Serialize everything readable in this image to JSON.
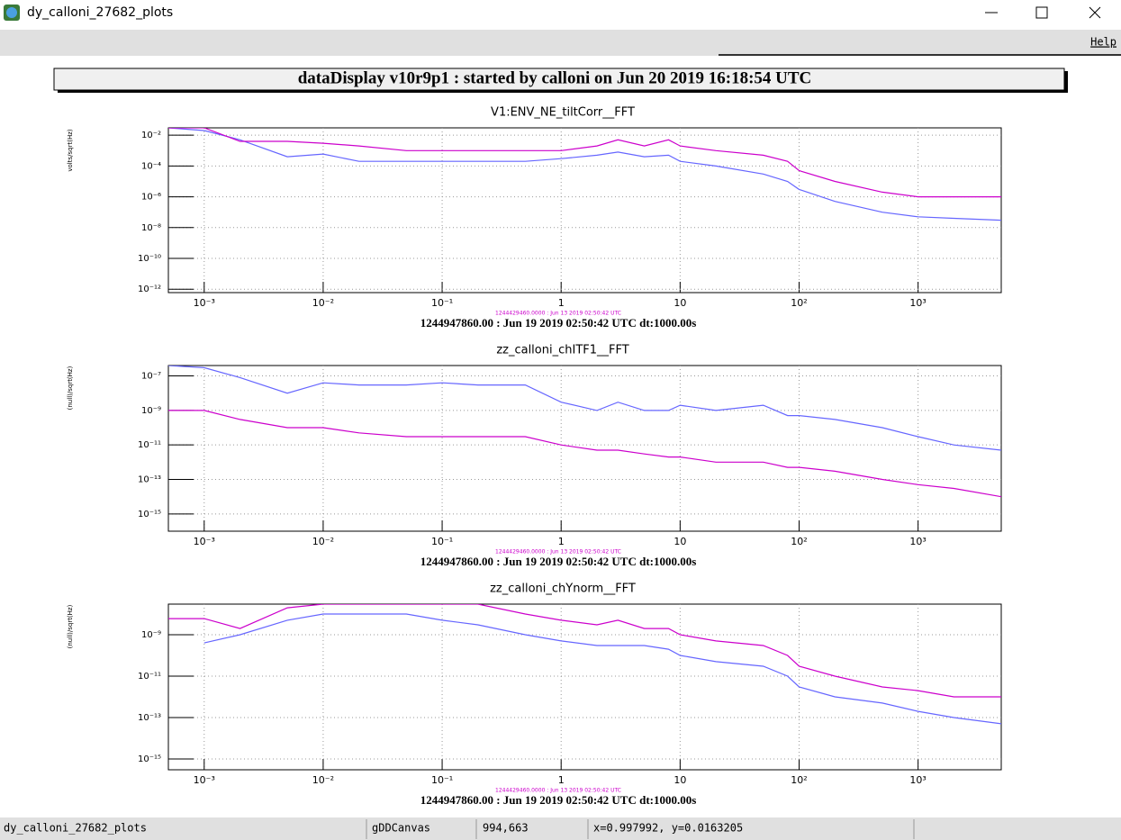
{
  "window": {
    "title": "dy_calloni_27682_plots"
  },
  "menu": {
    "help": "Help"
  },
  "canvas_title": "dataDisplay v10r9p1 : started by calloni on Jun 20 2019 16:18:54 UTC",
  "chart_data": [
    {
      "type": "line",
      "title": "V1:ENV_NE_tiltCorr__FFT",
      "y_label": "volts/sqrt(Hz)",
      "x_label": "1244947860.00 : Jun 19 2019 02:50:42 UTC dt:1000.00s",
      "ref_label": "1244429460.0000 : Jun 13 2019 02:50:42 UTC",
      "log_x": true,
      "log_y": true,
      "grid": true,
      "xlim": [
        0.0005,
        5000
      ],
      "xticks": [
        {
          "value": 0.001,
          "label": "10⁻³"
        },
        {
          "value": 0.01,
          "label": "10⁻²"
        },
        {
          "value": 0.1,
          "label": "10⁻¹"
        },
        1,
        10,
        {
          "value": 100,
          "label": "10²"
        },
        {
          "value": 1000,
          "label": "10³"
        }
      ],
      "ylim": [
        6e-13,
        0.03
      ],
      "yticks": [
        {
          "value": 0.01,
          "label": "10⁻²"
        },
        {
          "value": 0.0001,
          "label": "10⁻⁴"
        },
        {
          "value": 1e-06,
          "label": "10⁻⁶"
        },
        {
          "value": 1e-08,
          "label": "10⁻⁸"
        },
        {
          "value": 1e-10,
          "label": "10⁻¹⁰"
        },
        {
          "value": 1e-12,
          "label": "10⁻¹²"
        }
      ],
      "x": [
        0.0005,
        0.001,
        0.002,
        0.005,
        0.01,
        0.02,
        0.05,
        0.1,
        0.2,
        0.5,
        1,
        2,
        3,
        5,
        8,
        10,
        20,
        50,
        80,
        100,
        200,
        500,
        1000,
        2000,
        5000
      ],
      "series": [
        {
          "color": "#6666ff",
          "values": [
            0.03,
            0.02,
            0.005,
            0.0004,
            0.0006,
            0.0002,
            0.0002,
            0.0002,
            0.0002,
            0.0002,
            0.0003,
            0.0005,
            0.0008,
            0.0004,
            0.0005,
            0.0002,
            0.0001,
            3e-05,
            1e-05,
            3e-06,
            5e-07,
            1e-07,
            5e-08,
            4e-08,
            3e-08
          ]
        },
        {
          "color": "#cc00cc",
          "values": [
            0.03,
            0.03,
            0.004,
            0.004,
            0.003,
            0.002,
            0.001,
            0.001,
            0.001,
            0.001,
            0.001,
            0.002,
            0.005,
            0.002,
            0.005,
            0.002,
            0.001,
            0.0005,
            0.0002,
            5e-05,
            1e-05,
            2e-06,
            1e-06,
            1e-06,
            1e-06
          ]
        }
      ]
    },
    {
      "type": "line",
      "title": "zz_calloni_chITF1__FFT",
      "y_label": "(null)/sqrt(Hz)",
      "x_label": "1244947860.00 : Jun 19 2019 02:50:42 UTC dt:1000.00s",
      "ref_label": "1244429460.0000 : Jun 13 2019 02:50:42 UTC",
      "log_x": true,
      "log_y": true,
      "grid": true,
      "xlim": [
        0.0005,
        5000
      ],
      "xticks": [
        {
          "value": 0.001,
          "label": "10⁻³"
        },
        {
          "value": 0.01,
          "label": "10⁻²"
        },
        {
          "value": 0.1,
          "label": "10⁻¹"
        },
        1,
        10,
        {
          "value": 100,
          "label": "10²"
        },
        {
          "value": 1000,
          "label": "10³"
        }
      ],
      "ylim": [
        1e-16,
        4e-07
      ],
      "yticks": [
        {
          "value": 1e-07,
          "label": "10⁻⁷"
        },
        {
          "value": 1e-09,
          "label": "10⁻⁹"
        },
        {
          "value": 1e-11,
          "label": "10⁻¹¹"
        },
        {
          "value": 1e-13,
          "label": "10⁻¹³"
        },
        {
          "value": 1e-15,
          "label": "10⁻¹⁵"
        }
      ],
      "x": [
        0.0005,
        0.001,
        0.002,
        0.005,
        0.01,
        0.02,
        0.05,
        0.1,
        0.2,
        0.5,
        1,
        2,
        3,
        5,
        8,
        10,
        20,
        50,
        80,
        100,
        200,
        500,
        1000,
        2000,
        5000
      ],
      "series": [
        {
          "color": "#6666ff",
          "values": [
            4e-07,
            3e-07,
            8e-08,
            1e-08,
            4e-08,
            3e-08,
            3e-08,
            4e-08,
            3e-08,
            3e-08,
            3e-09,
            1e-09,
            3e-09,
            1e-09,
            1e-09,
            2e-09,
            1e-09,
            2e-09,
            5e-10,
            5e-10,
            3e-10,
            1e-10,
            3e-11,
            1e-11,
            5e-12
          ]
        },
        {
          "color": "#cc00cc",
          "values": [
            1e-09,
            1e-09,
            3e-10,
            1e-10,
            1e-10,
            5e-11,
            3e-11,
            3e-11,
            3e-11,
            3e-11,
            1e-11,
            5e-12,
            5e-12,
            3e-12,
            2e-12,
            2e-12,
            1e-12,
            1e-12,
            5e-13,
            5e-13,
            3e-13,
            1e-13,
            5e-14,
            3e-14,
            1e-14
          ]
        }
      ]
    },
    {
      "type": "line",
      "title": "zz_calloni_chYnorm__FFT",
      "y_label": "(null)/sqrt(Hz)",
      "x_label": "1244947860.00 : Jun 19 2019 02:50:42 UTC dt:1000.00s",
      "ref_label": "1244429460.0000 : Jun 13 2019 02:50:42 UTC",
      "log_x": true,
      "log_y": true,
      "grid": true,
      "xlim": [
        0.0005,
        5000
      ],
      "xticks": [
        {
          "value": 0.001,
          "label": "10⁻³"
        },
        {
          "value": 0.01,
          "label": "10⁻²"
        },
        {
          "value": 0.1,
          "label": "10⁻¹"
        },
        1,
        10,
        {
          "value": 100,
          "label": "10²"
        },
        {
          "value": 1000,
          "label": "10³"
        }
      ],
      "ylim": [
        3e-16,
        3e-08
      ],
      "yticks": [
        {
          "value": 1e-09,
          "label": "10⁻⁹"
        },
        {
          "value": 1e-11,
          "label": "10⁻¹¹"
        },
        {
          "value": 1e-13,
          "label": "10⁻¹³"
        },
        {
          "value": 1e-15,
          "label": "10⁻¹⁵"
        }
      ],
      "x": [
        0.0005,
        0.001,
        0.002,
        0.005,
        0.01,
        0.02,
        0.05,
        0.1,
        0.2,
        0.5,
        1,
        2,
        3,
        5,
        8,
        10,
        20,
        50,
        80,
        100,
        200,
        500,
        1000,
        2000,
        5000
      ],
      "series": [
        {
          "color": "#6666ff",
          "values": [
            null,
            4e-10,
            1e-09,
            5e-09,
            1e-08,
            1e-08,
            1e-08,
            5e-09,
            3e-09,
            1e-09,
            5e-10,
            3e-10,
            3e-10,
            3e-10,
            2e-10,
            1e-10,
            5e-11,
            3e-11,
            1e-11,
            3e-12,
            1e-12,
            5e-13,
            2e-13,
            1e-13,
            5e-14
          ]
        },
        {
          "color": "#cc00cc",
          "values": [
            6e-09,
            6e-09,
            2e-09,
            2e-08,
            3e-08,
            3e-08,
            3e-08,
            3e-08,
            3e-08,
            1e-08,
            5e-09,
            3e-09,
            5e-09,
            2e-09,
            2e-09,
            1e-09,
            5e-10,
            3e-10,
            1e-10,
            3e-11,
            1e-11,
            3e-12,
            2e-12,
            1e-12,
            1e-12
          ]
        }
      ]
    }
  ],
  "status_bar": [
    "dy_calloni_27682_plots",
    "gDDCanvas",
    "994,663",
    "x=0.997992, y=0.0163205"
  ]
}
